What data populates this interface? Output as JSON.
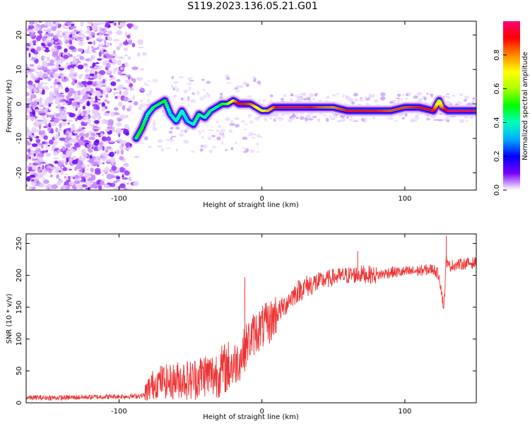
{
  "figure_title": "S119.2023.136.05.21.G01",
  "chart_data": [
    {
      "type": "heatmap",
      "title": "",
      "xlabel": "Height of straight line (km)",
      "ylabel": "Frequency (Hz)",
      "xlim": [
        -165,
        150
      ],
      "ylim": [
        -25,
        24
      ],
      "xticks": [
        -100,
        0,
        100
      ],
      "yticks": [
        -20,
        -10,
        0,
        10,
        20
      ],
      "colorbar": {
        "label": "Normalized spectral amplitude",
        "range": [
          0,
          1
        ],
        "ticks": [
          "0.0",
          "0.2",
          "0.4",
          "0.6",
          "0.8"
        ],
        "tick_values": [
          0,
          0.2,
          0.4,
          0.6,
          0.8
        ]
      },
      "ridge": {
        "x": [
          -88,
          -84,
          -80,
          -76,
          -72,
          -68,
          -64,
          -60,
          -56,
          -52,
          -48,
          -44,
          -40,
          -36,
          -32,
          -28,
          -24,
          -20,
          -16,
          -12,
          -8,
          -4,
          0,
          4,
          8,
          12,
          20,
          30,
          40,
          50,
          60,
          70,
          80,
          90,
          100,
          110,
          120,
          124,
          126,
          130,
          140,
          150
        ],
        "y": [
          -10,
          -7,
          -3,
          -1,
          0,
          1,
          -3,
          -5,
          -2,
          -5,
          -6,
          -3,
          -4,
          -2,
          -1,
          0,
          0,
          1,
          0,
          0,
          0,
          -1,
          -2,
          -2,
          -1,
          -1,
          -1,
          -1,
          -1,
          -1,
          -2,
          -2,
          -2,
          -2,
          -1,
          -1,
          -2,
          1,
          -1,
          -2,
          -2,
          -2
        ],
        "amplitude": [
          0.45,
          0.5,
          0.4,
          0.45,
          0.45,
          0.5,
          0.35,
          0.4,
          0.4,
          0.35,
          0.4,
          0.45,
          0.4,
          0.45,
          0.4,
          0.5,
          0.55,
          0.7,
          0.95,
          0.9,
          0.85,
          0.7,
          0.65,
          0.75,
          0.8,
          0.95,
          0.95,
          0.95,
          0.85,
          0.8,
          0.9,
          0.9,
          0.9,
          0.85,
          0.85,
          0.9,
          0.9,
          0.6,
          0.8,
          0.95,
          0.95,
          0.95
        ]
      },
      "noise_region_x": [
        -165,
        -80
      ]
    },
    {
      "type": "line",
      "title": "",
      "xlabel": "Height of straight line (km)",
      "ylabel": "SNR (10 * v/v)",
      "xlim": [
        -165,
        150
      ],
      "ylim": [
        0,
        265
      ],
      "xticks": [
        -100,
        0,
        100
      ],
      "yticks": [
        0,
        50,
        100,
        150,
        200,
        250
      ],
      "color": "#ee3333",
      "series": [
        {
          "name": "SNR",
          "x": [
            -165,
            -140,
            -120,
            -100,
            -90,
            -82,
            -78,
            -74,
            -70,
            -65,
            -60,
            -55,
            -50,
            -45,
            -40,
            -35,
            -30,
            -25,
            -20,
            -15,
            -10,
            -5,
            0,
            5,
            10,
            15,
            20,
            25,
            30,
            40,
            50,
            60,
            70,
            80,
            90,
            100,
            110,
            120,
            124,
            126,
            127,
            128,
            129,
            130,
            132,
            140,
            150
          ],
          "y": [
            8,
            8,
            9,
            10,
            10,
            12,
            25,
            32,
            35,
            32,
            35,
            38,
            35,
            40,
            45,
            42,
            48,
            55,
            60,
            70,
            95,
            110,
            118,
            125,
            140,
            150,
            165,
            175,
            182,
            190,
            197,
            200,
            202,
            200,
            205,
            205,
            207,
            210,
            200,
            170,
            148,
            175,
            230,
            215,
            215,
            218,
            220
          ]
        }
      ],
      "spikes": [
        {
          "x": -12,
          "y": 197
        },
        {
          "x": 67,
          "y": 238
        },
        {
          "x": 129,
          "y": 262
        }
      ]
    }
  ]
}
